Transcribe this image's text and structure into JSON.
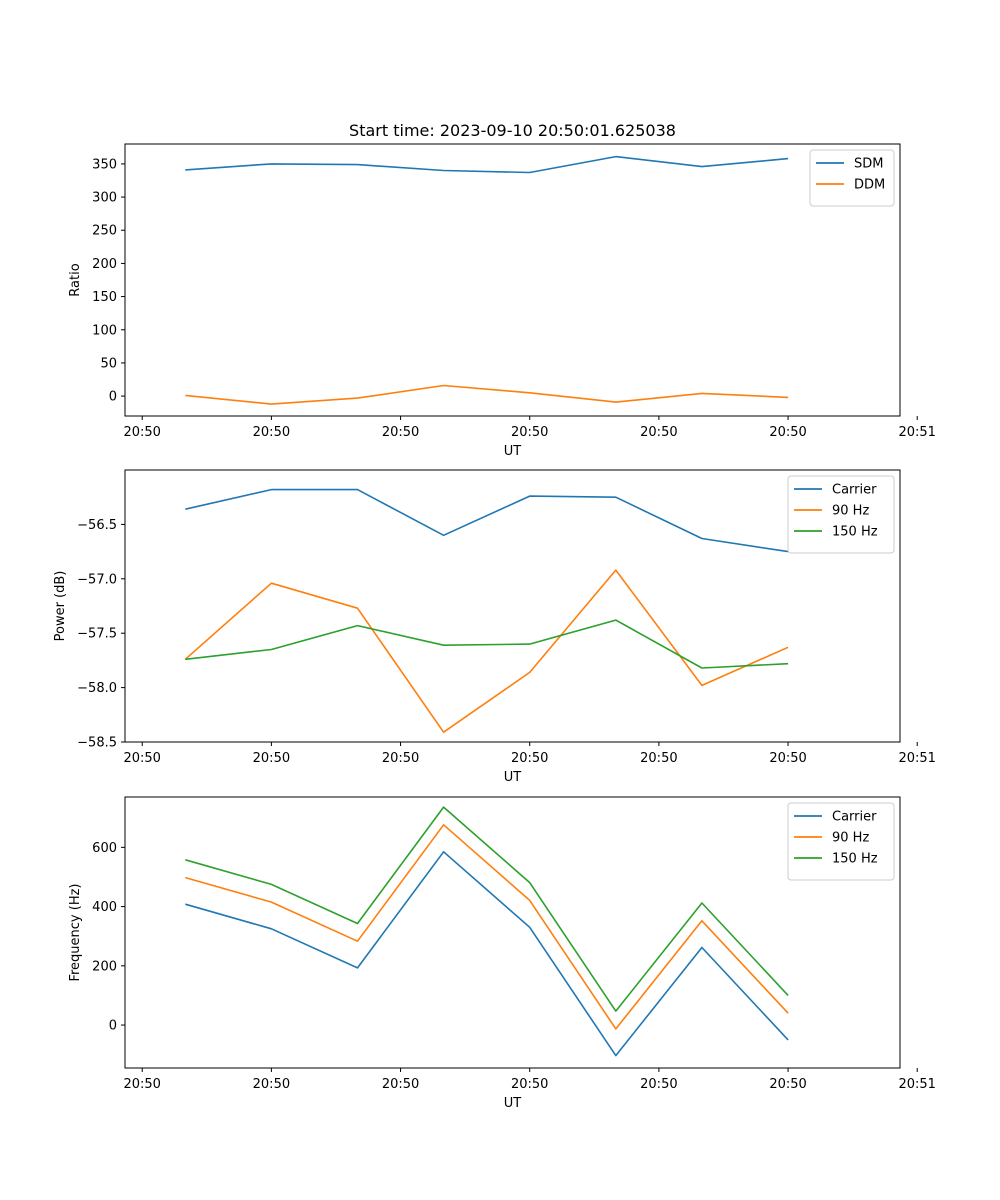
{
  "chart_data": [
    {
      "type": "line",
      "title": "Start time: 2023-09-10 20:50:01.625038",
      "xlabel": "UT",
      "ylabel": "Ratio",
      "x": [
        1,
        2,
        3,
        4,
        5,
        6,
        7,
        8
      ],
      "xlim": [
        0.3,
        9.3
      ],
      "xticks": [
        0.5,
        2,
        3.5,
        5,
        6.5,
        8,
        9.5
      ],
      "xtick_labels": [
        "20:50",
        "20:50",
        "20:50",
        "20:50",
        "20:50",
        "20:50",
        "20:51"
      ],
      "ylim": [
        -30,
        380
      ],
      "yticks": [
        0,
        50,
        100,
        150,
        200,
        250,
        300,
        350
      ],
      "ytick_labels": [
        "0",
        "50",
        "100",
        "150",
        "200",
        "250",
        "300",
        "350"
      ],
      "legend_position": "top-right",
      "series": [
        {
          "name": "SDM",
          "color": "#1f77b4",
          "values": [
            341,
            350,
            349,
            340,
            337,
            361,
            346,
            358
          ]
        },
        {
          "name": "DDM",
          "color": "#ff7f0e",
          "values": [
            1,
            -12,
            -3,
            16,
            5,
            -9,
            4,
            -2
          ]
        }
      ]
    },
    {
      "type": "line",
      "title": "",
      "xlabel": "UT",
      "ylabel": "Power (dB)",
      "x": [
        1,
        2,
        3,
        4,
        5,
        6,
        7,
        8
      ],
      "xlim": [
        0.3,
        9.3
      ],
      "xticks": [
        0.5,
        2,
        3.5,
        5,
        6.5,
        8,
        9.5
      ],
      "xtick_labels": [
        "20:50",
        "20:50",
        "20:50",
        "20:50",
        "20:50",
        "20:50",
        "20:51"
      ],
      "ylim": [
        -58.5,
        -56.0
      ],
      "yticks": [
        -58.5,
        -58.0,
        -57.5,
        -57.0,
        -56.5
      ],
      "ytick_labels": [
        "−58.5",
        "−58.0",
        "−57.5",
        "−57.0",
        "−56.5"
      ],
      "legend_position": "top-right",
      "series": [
        {
          "name": "Carrier",
          "color": "#1f77b4",
          "values": [
            -56.36,
            -56.18,
            -56.18,
            -56.6,
            -56.24,
            -56.25,
            -56.63,
            -56.75
          ]
        },
        {
          "name": "90 Hz",
          "color": "#ff7f0e",
          "values": [
            -57.74,
            -57.04,
            -57.27,
            -58.41,
            -57.86,
            -56.92,
            -57.98,
            -57.63
          ]
        },
        {
          "name": "150 Hz",
          "color": "#2ca02c",
          "values": [
            -57.74,
            -57.65,
            -57.43,
            -57.61,
            -57.6,
            -57.38,
            -57.82,
            -57.78
          ]
        }
      ]
    },
    {
      "type": "line",
      "title": "",
      "xlabel": "UT",
      "ylabel": "Frequency (Hz)",
      "x": [
        1,
        2,
        3,
        4,
        5,
        6,
        7,
        8
      ],
      "xlim": [
        0.3,
        9.3
      ],
      "xticks": [
        0.5,
        2,
        3.5,
        5,
        6.5,
        8,
        9.5
      ],
      "xtick_labels": [
        "20:50",
        "20:50",
        "20:50",
        "20:50",
        "20:50",
        "20:50",
        "20:51"
      ],
      "ylim": [
        -145,
        770
      ],
      "yticks": [
        0,
        200,
        400,
        600
      ],
      "ytick_labels": [
        "0",
        "200",
        "400",
        "600"
      ],
      "legend_position": "top-right",
      "series": [
        {
          "name": "Carrier",
          "color": "#1f77b4",
          "values": [
            408,
            325,
            193,
            585,
            330,
            -103,
            262,
            -50
          ]
        },
        {
          "name": "90 Hz",
          "color": "#ff7f0e",
          "values": [
            498,
            415,
            283,
            676,
            421,
            -13,
            352,
            40
          ]
        },
        {
          "name": "150 Hz",
          "color": "#2ca02c",
          "values": [
            558,
            475,
            343,
            736,
            481,
            47,
            412,
            100
          ]
        }
      ]
    }
  ]
}
